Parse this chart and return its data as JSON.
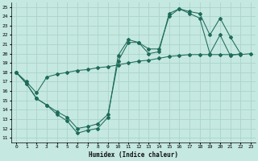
{
  "xlabel": "Humidex (Indice chaleur)",
  "xlim": [
    -0.5,
    23.5
  ],
  "ylim": [
    10.5,
    25.5
  ],
  "xticks": [
    0,
    1,
    2,
    3,
    4,
    5,
    6,
    7,
    8,
    9,
    10,
    11,
    12,
    13,
    14,
    15,
    16,
    17,
    18,
    19,
    20,
    21,
    22,
    23
  ],
  "yticks": [
    11,
    12,
    13,
    14,
    15,
    16,
    17,
    18,
    19,
    20,
    21,
    22,
    23,
    24,
    25
  ],
  "bg_color": "#c5e8e0",
  "line_color": "#1e6b5a",
  "grid_color": "#aad4cc",
  "line1": {
    "x": [
      0,
      1,
      2,
      3,
      4,
      5,
      6,
      7,
      8,
      9,
      10,
      11,
      12,
      13,
      14,
      15,
      16,
      17,
      18,
      19,
      20,
      21,
      22,
      23
    ],
    "y": [
      18,
      16.8,
      15.2,
      14.5,
      13.5,
      12.8,
      11.5,
      11.8,
      12.0,
      13.2,
      19.8,
      21.5,
      21.2,
      20.0,
      20.2,
      24.3,
      24.8,
      24.3,
      23.8,
      20.0,
      22.0,
      19.8,
      20.0,
      null
    ]
  },
  "line2": {
    "x": [
      0,
      1,
      2,
      3,
      4,
      5,
      6,
      7,
      8,
      9,
      10,
      11,
      12,
      13,
      14,
      15,
      16,
      17,
      18,
      19,
      20,
      21,
      22,
      23
    ],
    "y": [
      18,
      16.8,
      15.2,
      14.5,
      13.8,
      13.2,
      12.0,
      12.2,
      12.5,
      13.5,
      19.2,
      21.2,
      21.2,
      20.5,
      20.5,
      24.0,
      24.8,
      24.5,
      24.3,
      22.0,
      23.8,
      21.8,
      20.0,
      null
    ]
  },
  "line3": {
    "x": [
      0,
      1,
      2,
      3,
      4,
      5,
      6,
      7,
      8,
      9,
      10,
      11,
      12,
      13,
      14,
      15,
      16,
      17,
      18,
      19,
      20,
      21,
      22,
      23
    ],
    "y": [
      18,
      17.0,
      15.8,
      17.5,
      17.8,
      18.0,
      18.2,
      18.3,
      18.5,
      18.6,
      18.8,
      19.0,
      19.2,
      19.3,
      19.5,
      19.7,
      19.8,
      19.9,
      19.9,
      19.9,
      19.9,
      19.9,
      19.9,
      20.0
    ]
  }
}
